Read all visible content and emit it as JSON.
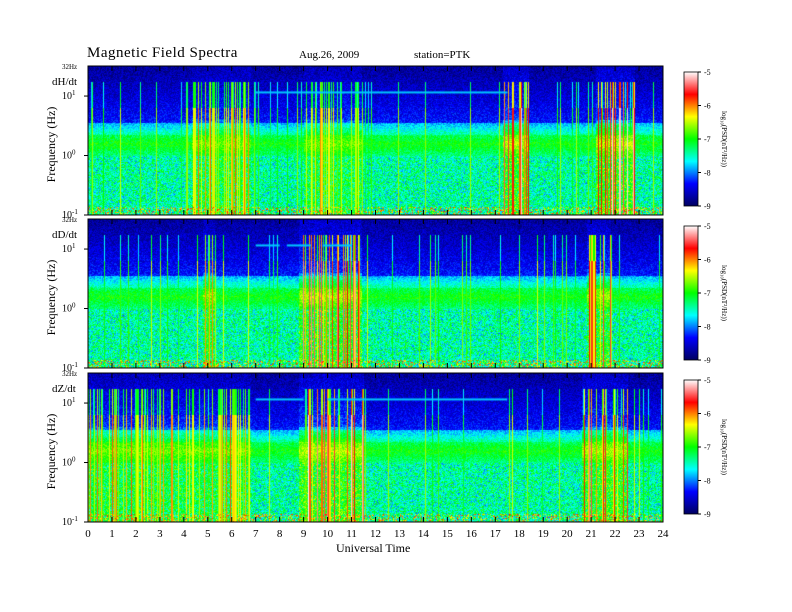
{
  "header": {
    "title": "Magnetic  Field  Spectra",
    "date": "Aug.26, 2009",
    "station": "station=PTK"
  },
  "chart_data": {
    "type": "heatmap",
    "x_axis": {
      "label": "Universal Time",
      "range": [
        0,
        24
      ],
      "ticks": [
        "0",
        "1",
        "2",
        "3",
        "4",
        "5",
        "6",
        "7",
        "8",
        "9",
        "10",
        "11",
        "12",
        "13",
        "14",
        "15",
        "16",
        "17",
        "18",
        "19",
        "20",
        "21",
        "22",
        "23",
        "24"
      ]
    },
    "y_axis": {
      "label": "Frequency  (Hz)",
      "scale": "log",
      "range_hz": [
        0.1,
        32
      ],
      "top_label": "32Hz",
      "tick_labels": [
        {
          "base": "10",
          "exp": "1",
          "value": 10
        },
        {
          "base": "10",
          "exp": "0",
          "value": 1
        },
        {
          "base": "10",
          "exp": "-1",
          "value": 0.1
        }
      ]
    },
    "colorbar": {
      "label": "log₁₀(PSD(nT²/Hz))",
      "range": [
        -9,
        -5
      ],
      "ticks": [
        "-5",
        "-6",
        "-7",
        "-8",
        "-9"
      ],
      "colors": [
        "#000060",
        "#0000ff",
        "#00ffff",
        "#00ff00",
        "#ffff00",
        "#ff0000",
        "#ffffff"
      ]
    },
    "panels": [
      {
        "name": "dH/dt",
        "bursts": [
          {
            "t_start": 4.3,
            "t_end": 6.8,
            "intensity": 0.6
          },
          {
            "t_start": 9.0,
            "t_end": 11.4,
            "intensity": 0.55
          },
          {
            "t_start": 17.3,
            "t_end": 18.4,
            "intensity": 1.0
          },
          {
            "t_start": 21.2,
            "t_end": 22.8,
            "intensity": 1.0
          }
        ],
        "lines": [
          {
            "t_start": 7.0,
            "t_end": 17.5,
            "freq_hz": 11.5
          }
        ]
      },
      {
        "name": "dD/dt",
        "bursts": [
          {
            "t_start": 4.8,
            "t_end": 5.3,
            "intensity": 0.7
          },
          {
            "t_start": 8.8,
            "t_end": 11.4,
            "intensity": 0.9
          },
          {
            "t_start": 20.8,
            "t_end": 21.8,
            "intensity": 0.8
          }
        ],
        "lines": [
          {
            "t_start": 7.0,
            "t_end": 8.0,
            "freq_hz": 11.5
          },
          {
            "t_start": 8.3,
            "t_end": 9.3,
            "freq_hz": 11.5
          },
          {
            "t_start": 9.8,
            "t_end": 11.0,
            "freq_hz": 11.5
          }
        ]
      },
      {
        "name": "dZ/dt",
        "bursts": [
          {
            "t_start": 0.0,
            "t_end": 6.8,
            "intensity": 0.6
          },
          {
            "t_start": 8.8,
            "t_end": 11.5,
            "intensity": 1.0
          },
          {
            "t_start": 20.6,
            "t_end": 22.5,
            "intensity": 0.9
          }
        ],
        "lines": [
          {
            "t_start": 7.0,
            "t_end": 9.0,
            "freq_hz": 11.5
          },
          {
            "t_start": 10.0,
            "t_end": 17.5,
            "freq_hz": 11.5
          }
        ]
      }
    ]
  }
}
